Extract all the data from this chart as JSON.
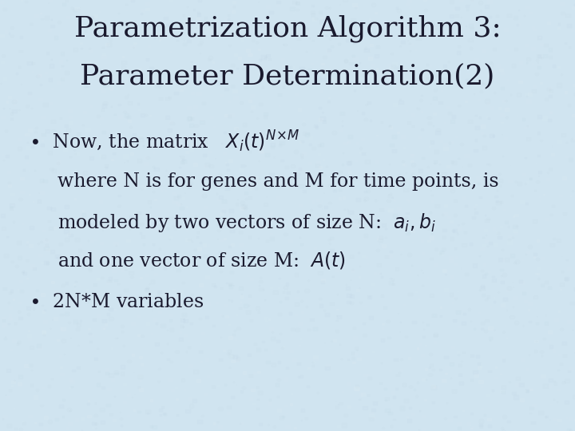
{
  "title_line1": "Parametrization Algorithm 3:",
  "title_line2": "Parameter Determination(2)",
  "background_color": "#d0e4f0",
  "text_color": "#1a1a2e",
  "title_fontsize": 26,
  "body_fontsize": 17,
  "bullet1_text": "•  Now, the matrix  ",
  "bullet1_math": "$X_i(t)^{N\\!\\times\\! M}$",
  "line2": "where N is for genes and M for time points, is",
  "line3a": "modeled by two vectors of size N:  ",
  "line3b": "$a_i, b_i$",
  "line4a": "and one vector of size M:  ",
  "line4b": "$A(t)$",
  "bullet2": "•  2N*M variables"
}
